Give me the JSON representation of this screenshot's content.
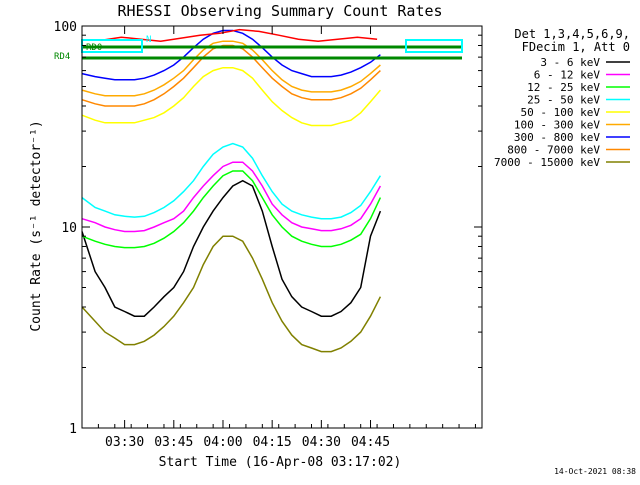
{
  "chart_data": {
    "type": "line",
    "title": "RHESSI Observing Summary Count Rates",
    "xlabel": "Start Time (16-Apr-08 03:17:02)",
    "ylabel": "Count Rate (s⁻¹ detector⁻¹)",
    "yscale": "log",
    "ylim": [
      1,
      100
    ],
    "xlim_min": [
      0,
      122
    ],
    "x_ticks": [
      {
        "min": 13,
        "label": "03:30"
      },
      {
        "min": 28,
        "label": "03:45"
      },
      {
        "min": 43,
        "label": "04:00"
      },
      {
        "min": 58,
        "label": "04:15"
      },
      {
        "min": 73,
        "label": "04:30"
      },
      {
        "min": 88,
        "label": "04:45"
      }
    ],
    "y_ticks": [
      {
        "value": 1,
        "label": "1"
      },
      {
        "value": 10,
        "label": "10"
      },
      {
        "value": 100,
        "label": "100"
      }
    ],
    "legend": {
      "position": "right",
      "header": [
        "Det 1,3,4,5,6,9,",
        "FDecim 1, Att 0"
      ]
    },
    "x_samples_min": [
      0,
      4,
      7,
      10,
      13,
      16,
      19,
      22,
      25,
      28,
      31,
      34,
      37,
      40,
      43,
      46,
      49,
      52,
      55,
      58,
      61,
      64,
      67,
      70,
      73,
      76,
      79,
      82,
      85,
      88,
      91
    ],
    "series": [
      {
        "name": "3 - 6 keV",
        "color": "#000000",
        "values": [
          9.5,
          6,
          5,
          4,
          3.8,
          3.6,
          3.6,
          4,
          4.5,
          5,
          6,
          8,
          10,
          12,
          14,
          16,
          17,
          16,
          12,
          8,
          5.5,
          4.5,
          4,
          3.8,
          3.6,
          3.6,
          3.8,
          4.2,
          5,
          9,
          12
        ]
      },
      {
        "name": "6 - 12 keV",
        "color": "#ff00ff",
        "values": [
          11,
          10.5,
          10,
          9.7,
          9.5,
          9.5,
          9.6,
          10,
          10.5,
          11,
          12,
          14,
          16,
          18,
          20,
          21,
          21,
          19,
          16,
          13,
          11.5,
          10.5,
          10,
          9.8,
          9.6,
          9.6,
          9.8,
          10.2,
          11,
          13,
          16
        ]
      },
      {
        "name": "12 - 25 keV",
        "color": "#00ff00",
        "values": [
          9,
          8.5,
          8.2,
          8,
          7.9,
          7.9,
          8,
          8.3,
          8.8,
          9.5,
          10.5,
          12,
          14,
          16,
          18,
          19,
          19,
          17,
          14,
          11.5,
          10,
          9,
          8.5,
          8.2,
          8,
          8,
          8.2,
          8.6,
          9.2,
          11,
          14
        ]
      },
      {
        "name": "25 - 50 keV",
        "color": "#00ffff",
        "values": [
          14,
          12.5,
          12,
          11.5,
          11.3,
          11.2,
          11.3,
          11.8,
          12.5,
          13.5,
          15,
          17,
          20,
          23,
          25,
          26,
          25,
          22,
          18,
          15,
          13,
          12,
          11.5,
          11.2,
          11,
          11,
          11.2,
          11.8,
          12.8,
          15,
          18
        ]
      },
      {
        "name": "50 - 100 keV",
        "color": "#ffff00",
        "values": [
          36,
          34,
          33,
          33,
          33,
          33,
          34,
          35,
          37,
          40,
          44,
          50,
          56,
          60,
          62,
          62,
          60,
          55,
          48,
          42,
          38,
          35,
          33,
          32,
          32,
          32,
          33,
          34,
          37,
          42,
          48
        ]
      },
      {
        "name": "100 - 300 keV",
        "color": "#ffaa00",
        "values": [
          48,
          46,
          45,
          45,
          45,
          45,
          46,
          48,
          51,
          55,
          60,
          68,
          76,
          82,
          84,
          84,
          82,
          76,
          68,
          60,
          54,
          50,
          48,
          47,
          47,
          47,
          48,
          50,
          53,
          58,
          64
        ]
      },
      {
        "name": "300 - 800 keV",
        "color": "#0000ff",
        "values": [
          58,
          56,
          55,
          54,
          54,
          54,
          55,
          57,
          60,
          64,
          70,
          78,
          86,
          92,
          95,
          95,
          92,
          86,
          78,
          70,
          64,
          60,
          58,
          56,
          56,
          56,
          57,
          59,
          62,
          66,
          72
        ]
      },
      {
        "name": "800 - 7000 keV",
        "color": "#ff8800",
        "values": [
          43,
          41,
          40,
          40,
          40,
          40,
          41,
          43,
          46,
          50,
          55,
          62,
          70,
          77,
          80,
          80,
          77,
          70,
          62,
          55,
          50,
          46,
          44,
          43,
          43,
          43,
          44,
          46,
          49,
          54,
          60
        ]
      },
      {
        "name": "7000 - 15000 keV",
        "color": "#808000",
        "values": [
          4,
          3.4,
          3,
          2.8,
          2.6,
          2.6,
          2.7,
          2.9,
          3.2,
          3.6,
          4.2,
          5,
          6.5,
          8,
          9,
          9,
          8.5,
          7,
          5.5,
          4.2,
          3.4,
          2.9,
          2.6,
          2.5,
          2.4,
          2.4,
          2.5,
          2.7,
          3,
          3.6,
          4.5
        ]
      }
    ],
    "attenuator_traces": [
      {
        "name": "red",
        "color": "#ff0000",
        "x_samples_min": [
          0,
          6,
          12,
          18,
          24,
          30,
          36,
          42,
          48,
          54,
          60,
          66,
          72,
          78,
          84,
          90
        ],
        "values": [
          85,
          85,
          88,
          86,
          84,
          87,
          90,
          92,
          96,
          94,
          90,
          86,
          84,
          86,
          88,
          86
        ]
      }
    ],
    "annotations": [
      {
        "text": "RD0",
        "color": "#008800"
      },
      {
        "text": "RD4",
        "color": "#008800"
      },
      {
        "text": "N",
        "color": "#00ffff"
      }
    ],
    "timestamp": "14-Oct-2021 08:38"
  }
}
